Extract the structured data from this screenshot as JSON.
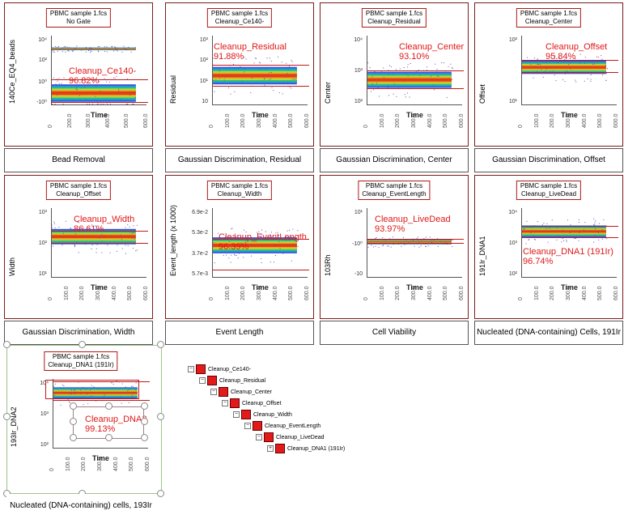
{
  "panels": [
    {
      "title": "PBMC sample 1.fcs",
      "parent": "No Gate",
      "ylabel": "140Ce_EQ4_beads",
      "yticks": [
        "10⁴",
        "10²",
        "10⁰",
        "-10⁰"
      ],
      "xticks": [
        "0",
        "200.0",
        "300.0",
        "400.0",
        "500.0",
        "600.0"
      ],
      "xlabel": "Time",
      "gate_name": "Cleanup_Ce140-",
      "gate_pct": "96.82%",
      "caption": "Bead Removal"
    },
    {
      "title": "PBMC sample 1.fcs",
      "parent": "Cleanup_Ce140-",
      "ylabel": "Residual",
      "yticks": [
        "10³",
        "10²",
        "10¹",
        "10"
      ],
      "xticks": [
        "0",
        "100.0",
        "200.0",
        "300.0",
        "400.0",
        "500.0",
        "600.0"
      ],
      "xlabel": "Time",
      "gate_name": "Cleanup_Residual",
      "gate_pct": "91.88%",
      "caption": "Gaussian Discrimination, Residual"
    },
    {
      "title": "PBMC sample 1.fcs",
      "parent": "Cleanup_Residual",
      "ylabel": "Center",
      "yticks": [
        "10⁴",
        "10³",
        "10²"
      ],
      "xticks": [
        "0",
        "100.0",
        "200.0",
        "300.0",
        "400.0",
        "500.0",
        "600.0"
      ],
      "xlabel": "Time",
      "gate_name": "Cleanup_Center",
      "gate_pct": "93.10%",
      "caption": "Gaussian Discrimination, Center"
    },
    {
      "title": "PBMC sample 1.fcs",
      "parent": "Cleanup_Center",
      "ylabel": "Offset",
      "yticks": [
        "10²",
        "10¹"
      ],
      "xticks": [
        "0",
        "100.0",
        "200.0",
        "300.0",
        "400.0",
        "500.0",
        "600.0"
      ],
      "xlabel": "Time",
      "gate_name": "Cleanup_Offset",
      "gate_pct": "95.84%",
      "caption": "Gaussian Discrimination, Offset"
    },
    {
      "title": "PBMC sample 1.fcs",
      "parent": "Cleanup_Offset",
      "ylabel": "Width",
      "yticks": [
        "10³",
        "10²",
        "10¹"
      ],
      "xticks": [
        "0",
        "100.0",
        "200.0",
        "300.0",
        "400.0",
        "500.0",
        "600.0"
      ],
      "xlabel": "Time",
      "gate_name": "Cleanup_Width",
      "gate_pct": "86.61%",
      "caption": "Gaussian Discrimination, Width"
    },
    {
      "title": "PBMC sample 1.fcs",
      "parent": "Cleanup_Width",
      "ylabel": "Event_length (x 1000)",
      "yticks": [
        "6.9e-2",
        "5.3e-2",
        "3.7e-2",
        "5.7e-3"
      ],
      "xticks": [
        "0",
        "100.0",
        "200.0",
        "300.0",
        "400.0",
        "500.0",
        "600.0"
      ],
      "xlabel": "Time",
      "gate_name": "Cleanup_EventLength",
      "gate_pct": "96.39%",
      "caption": "Event Length"
    },
    {
      "title": "PBMC sample 1.fcs",
      "parent": "Cleanup_EventLength",
      "ylabel": "103Rh",
      "yticks": [
        "10¹",
        "-10⁰",
        "-10"
      ],
      "xticks": [
        "0",
        "100.0",
        "200.0",
        "300.0",
        "400.0",
        "500.0",
        "600.0"
      ],
      "xlabel": "Time",
      "gate_name": "Cleanup_LiveDead",
      "gate_pct": "93.97%",
      "caption": "Cell Viability"
    },
    {
      "title": "PBMC sample 1.fcs",
      "parent": "Cleanup_LiveDead",
      "ylabel": "191Ir_DNA1",
      "yticks": [
        "10⁴",
        "10³",
        "10²"
      ],
      "xticks": [
        "0",
        "100.0",
        "200.0",
        "300.0",
        "400.0",
        "500.0",
        "600.0"
      ],
      "xlabel": "Time",
      "gate_name": "Cleanup_DNA1 (191Ir)",
      "gate_pct": "96.74%",
      "caption": "Nucleated (DNA-containing) Cells, 191Ir"
    }
  ],
  "selected_panel": {
    "title": "PBMC sample 1.fcs",
    "parent": "Cleanup_DNA1 (191Ir)",
    "ylabel": "193Ir_DNA2",
    "yticks": [
      "10⁴",
      "10³",
      "10²"
    ],
    "xticks": [
      "0",
      "100.0",
      "200.0",
      "300.0",
      "400.0",
      "500.0",
      "600.0"
    ],
    "xlabel": "Time",
    "gate_name": "Cleanup_DNA2",
    "gate_pct": "99.13%",
    "caption": "Nucleated (DNA-containing) cells, 193Ir"
  },
  "tree": [
    {
      "label": "Cleanup_Ce140-",
      "exp": "−"
    },
    {
      "label": "Cleanup_Residual",
      "exp": "−"
    },
    {
      "label": "Cleanup_Center",
      "exp": "−"
    },
    {
      "label": "Cleanup_Offset",
      "exp": "−"
    },
    {
      "label": "Cleanup_Width",
      "exp": "−"
    },
    {
      "label": "Cleanup_EventLength",
      "exp": "−"
    },
    {
      "label": "Cleanup_LiveDead",
      "exp": "−"
    },
    {
      "label": "Cleanup_DNA1 (191Ir)",
      "exp": "+"
    }
  ],
  "colors": {
    "gate": "#e01818",
    "panel_border": "#7a1c1c",
    "tree_square": "#e21a1a",
    "selection": "#9cc48a"
  }
}
